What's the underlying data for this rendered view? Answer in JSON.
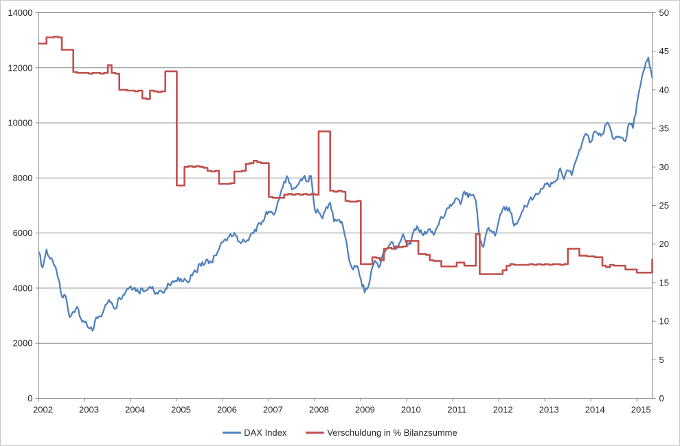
{
  "chart_data": {
    "type": "line",
    "title": "",
    "x_start": 2002,
    "x_end": 2015.333,
    "x_ticks": [
      2002,
      2003,
      2004,
      2005,
      2006,
      2007,
      2008,
      2009,
      2010,
      2011,
      2012,
      2013,
      2014,
      2015
    ],
    "left_axis": {
      "min": 0,
      "max": 14000,
      "step": 2000,
      "tick_labels": [
        "0",
        "2000",
        "4000",
        "6000",
        "8000",
        "10000",
        "12000",
        "14000"
      ]
    },
    "right_axis": {
      "min": 0,
      "max": 50,
      "step": 5,
      "tick_labels": [
        "0",
        "5",
        "10",
        "15",
        "20",
        "25",
        "30",
        "35",
        "40",
        "45",
        "50"
      ]
    },
    "grid": "horizontal-on",
    "legend_position": "bottom-center",
    "background": "#ffffff",
    "gridline_color": "#878787",
    "axis_text_color": "#262626",
    "points_per_year": 12,
    "series": [
      {
        "name": "DAX Index",
        "axis": "left",
        "color": "#4F81BD",
        "style": "line",
        "start_year": 2002,
        "values": [
          5300,
          4745,
          5400,
          5060,
          4820,
          4380,
          3700,
          3710,
          2950,
          3150,
          3320,
          2890,
          2750,
          2550,
          2450,
          2940,
          2980,
          3220,
          3490,
          3480,
          3250,
          3660,
          3750,
          3965,
          4060,
          4020,
          3860,
          3990,
          3920,
          4050,
          3900,
          3790,
          3890,
          3960,
          4130,
          4260,
          4250,
          4350,
          4350,
          4200,
          4460,
          4590,
          4890,
          4830,
          5040,
          4930,
          5190,
          5410,
          5670,
          5720,
          5970,
          6010,
          5690,
          5680,
          5680,
          5860,
          6000,
          6260,
          6310,
          6600,
          6790,
          6710,
          6910,
          7400,
          7880,
          8000,
          7580,
          7640,
          7860,
          8020,
          7870,
          8070,
          6850,
          6750,
          6530,
          6950,
          7100,
          6420,
          6480,
          6420,
          5830,
          4990,
          4670,
          4810,
          4340,
          3840,
          4080,
          4770,
          4940,
          4810,
          5330,
          5460,
          5680,
          5410,
          5630,
          5960,
          5610,
          5600,
          6150,
          6140,
          5960,
          5970,
          6150,
          5930,
          6230,
          6600,
          6690,
          6910,
          7080,
          7270,
          7040,
          7510,
          7290,
          7380,
          7160,
          5780,
          5500,
          6140,
          6090,
          5900,
          6460,
          6860,
          6950,
          6760,
          6260,
          6420,
          6770,
          6970,
          7220,
          7260,
          7410,
          7610,
          7780,
          7740,
          7800,
          7910,
          8350,
          7960,
          8280,
          8100,
          8590,
          9030,
          9410,
          9550,
          9310,
          9690,
          9560,
          9600,
          9940,
          9830,
          9410,
          9470,
          9470,
          9330,
          9980,
          9810,
          10690,
          11400,
          11970,
          12370,
          11650
        ]
      },
      {
        "name": "Verschuldung in % Bilanzsumme",
        "axis": "right",
        "color": "#C0504D",
        "style": "step",
        "start_year": 2002,
        "values": [
          46.0,
          46.0,
          46.8,
          46.8,
          46.9,
          46.8,
          45.2,
          45.2,
          45.2,
          42.3,
          42.2,
          42.2,
          42.2,
          42.1,
          42.2,
          42.2,
          42.1,
          42.2,
          43.2,
          42.2,
          42.1,
          40.0,
          40.0,
          39.9,
          39.9,
          39.8,
          39.9,
          38.9,
          38.8,
          39.9,
          39.8,
          39.7,
          39.8,
          42.4,
          42.4,
          42.4,
          27.6,
          27.6,
          30.0,
          30.1,
          30.0,
          30.1,
          30.0,
          29.9,
          29.5,
          29.4,
          29.5,
          27.8,
          27.8,
          27.8,
          27.9,
          29.4,
          29.4,
          29.5,
          30.4,
          30.5,
          30.8,
          30.6,
          30.5,
          30.5,
          26.1,
          26.0,
          26.0,
          26.0,
          26.4,
          26.5,
          26.4,
          26.5,
          26.4,
          26.5,
          26.4,
          26.5,
          26.4,
          34.6,
          34.6,
          34.6,
          26.9,
          26.8,
          26.9,
          26.8,
          25.6,
          25.5,
          25.5,
          25.6,
          17.4,
          17.4,
          17.4,
          18.3,
          18.2,
          17.9,
          19.4,
          19.5,
          19.4,
          19.7,
          19.6,
          19.7,
          20.4,
          20.4,
          20.4,
          18.7,
          18.7,
          18.6,
          17.9,
          17.8,
          17.8,
          17.1,
          17.1,
          17.1,
          17.1,
          17.6,
          17.6,
          17.2,
          17.2,
          17.2,
          21.3,
          16.1,
          16.1,
          16.1,
          16.1,
          16.1,
          16.1,
          16.6,
          17.2,
          17.4,
          17.3,
          17.3,
          17.3,
          17.3,
          17.4,
          17.3,
          17.4,
          17.3,
          17.4,
          17.3,
          17.4,
          17.4,
          17.3,
          17.4,
          19.4,
          19.4,
          19.4,
          18.5,
          18.5,
          18.4,
          18.4,
          18.3,
          18.3,
          17.2,
          17.0,
          17.3,
          17.2,
          17.2,
          17.2,
          16.7,
          16.7,
          16.7,
          16.3,
          16.3,
          16.3,
          16.3,
          18.0
        ]
      }
    ]
  }
}
